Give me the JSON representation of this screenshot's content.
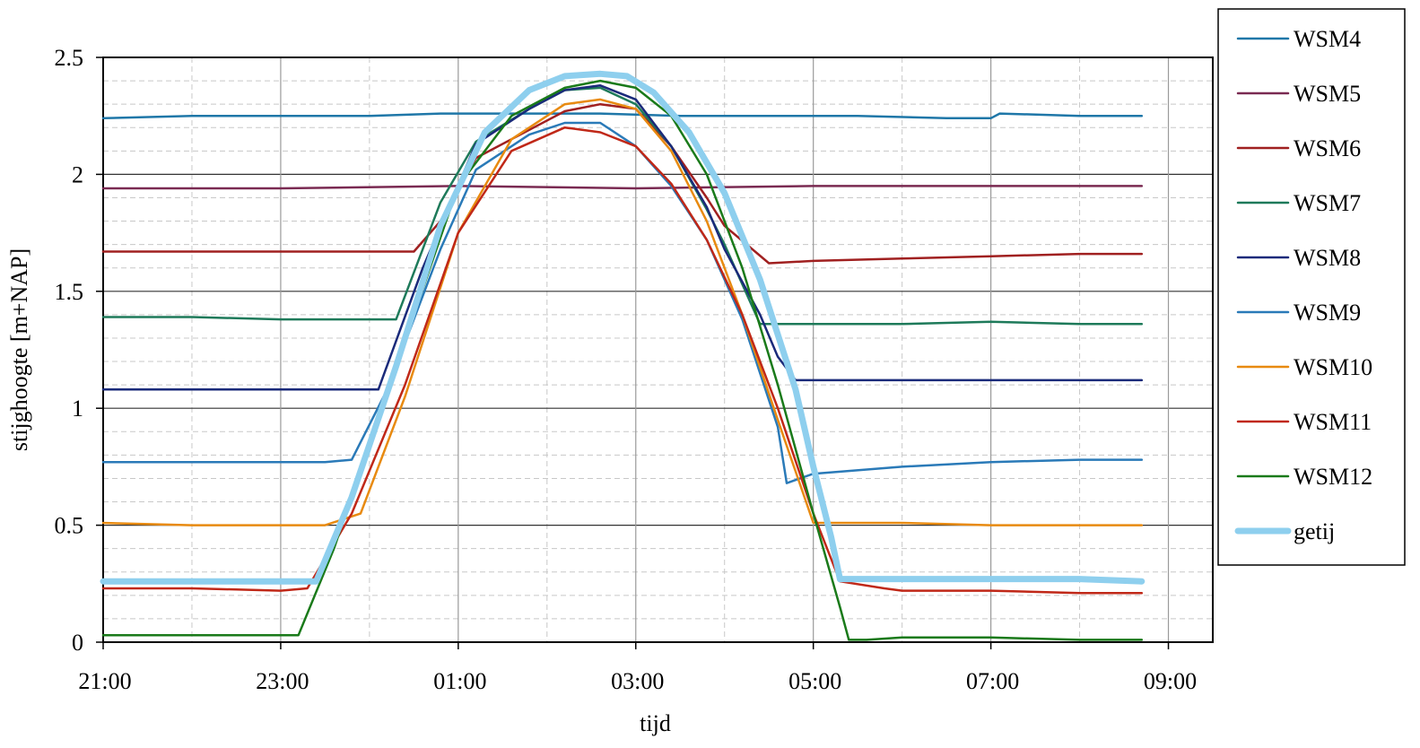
{
  "chart_data": {
    "type": "line",
    "title": "",
    "xlabel": "tijd",
    "ylabel": "stijghoogte [m+NAP]",
    "x_unit": "hours since 21:00",
    "xlim": [
      0,
      12.5
    ],
    "ylim": [
      0,
      2.5
    ],
    "grid": true,
    "legend_position": "right",
    "x_ticks": [
      {
        "value": 0,
        "label": "21:00"
      },
      {
        "value": 2,
        "label": "23:00"
      },
      {
        "value": 4,
        "label": "01:00"
      },
      {
        "value": 6,
        "label": "03:00"
      },
      {
        "value": 8,
        "label": "05:00"
      },
      {
        "value": 10,
        "label": "07:00"
      },
      {
        "value": 12,
        "label": "09:00"
      }
    ],
    "y_ticks": [
      {
        "value": 0,
        "label": "0"
      },
      {
        "value": 0.5,
        "label": "0.5"
      },
      {
        "value": 1,
        "label": "1"
      },
      {
        "value": 1.5,
        "label": "1.5"
      },
      {
        "value": 2,
        "label": "2"
      },
      {
        "value": 2.5,
        "label": "2.5"
      }
    ],
    "series": [
      {
        "name": "WSM4",
        "color": "#1f77a8",
        "width": 2.5,
        "x": [
          0,
          1,
          2,
          3,
          3.8,
          4.4,
          5,
          5.6,
          6.5,
          7.5,
          8.5,
          9.5,
          10.0,
          10.1,
          11,
          11.7
        ],
        "y": [
          2.24,
          2.25,
          2.25,
          2.25,
          2.26,
          2.26,
          2.26,
          2.26,
          2.25,
          2.25,
          2.25,
          2.24,
          2.24,
          2.26,
          2.25,
          2.25
        ]
      },
      {
        "name": "WSM5",
        "color": "#7a2a52",
        "width": 2.5,
        "x": [
          0,
          2,
          4,
          6,
          8,
          10,
          11.7
        ],
        "y": [
          1.94,
          1.94,
          1.95,
          1.94,
          1.95,
          1.95,
          1.95
        ]
      },
      {
        "name": "WSM6",
        "color": "#a02020",
        "width": 2.5,
        "x": [
          0,
          1,
          2,
          3,
          3.5,
          3.8,
          4.2,
          4.8,
          5.2,
          5.6,
          6.0,
          6.4,
          6.8,
          7.0,
          7.5,
          8,
          9,
          10,
          11,
          11.7
        ],
        "y": [
          1.67,
          1.67,
          1.67,
          1.67,
          1.67,
          1.8,
          2.07,
          2.19,
          2.27,
          2.3,
          2.28,
          2.12,
          1.9,
          1.78,
          1.62,
          1.63,
          1.64,
          1.65,
          1.66,
          1.66
        ]
      },
      {
        "name": "WSM7",
        "color": "#1e7a5a",
        "width": 2.5,
        "x": [
          0,
          1,
          2,
          3,
          3.3,
          3.8,
          4.2,
          4.8,
          5.2,
          5.6,
          6.0,
          6.4,
          6.8,
          7.0,
          7.4,
          8,
          9,
          10,
          11,
          11.7
        ],
        "y": [
          1.39,
          1.39,
          1.38,
          1.38,
          1.38,
          1.88,
          2.14,
          2.28,
          2.36,
          2.37,
          2.3,
          2.12,
          1.85,
          1.7,
          1.36,
          1.36,
          1.36,
          1.37,
          1.36,
          1.36
        ]
      },
      {
        "name": "WSM8",
        "color": "#1a2a7a",
        "width": 2.5,
        "x": [
          0,
          1,
          2,
          3,
          3.1,
          3.6,
          4.2,
          4.8,
          5.2,
          5.6,
          6.0,
          6.4,
          6.8,
          7.0,
          7.4,
          7.6,
          7.8,
          8,
          9,
          10,
          11,
          11.7
        ],
        "y": [
          1.08,
          1.08,
          1.08,
          1.08,
          1.08,
          1.6,
          2.13,
          2.28,
          2.36,
          2.38,
          2.32,
          2.12,
          1.86,
          1.68,
          1.4,
          1.22,
          1.12,
          1.12,
          1.12,
          1.12,
          1.12,
          1.12
        ]
      },
      {
        "name": "WSM9",
        "color": "#2a7ab8",
        "width": 2.5,
        "x": [
          0,
          1,
          2,
          2.5,
          2.8,
          3.2,
          3.8,
          4.2,
          4.8,
          5.2,
          5.6,
          6.0,
          6.4,
          6.8,
          7.2,
          7.6,
          7.7,
          8,
          9,
          10,
          11,
          11.7
        ],
        "y": [
          0.77,
          0.77,
          0.77,
          0.77,
          0.78,
          1.08,
          1.68,
          2.02,
          2.17,
          2.22,
          2.22,
          2.12,
          1.95,
          1.72,
          1.38,
          0.92,
          0.68,
          0.72,
          0.75,
          0.77,
          0.78,
          0.78
        ]
      },
      {
        "name": "WSM10",
        "color": "#e88a10",
        "width": 2.5,
        "x": [
          0,
          1,
          2,
          2.5,
          2.9,
          3.4,
          4.0,
          4.6,
          5.2,
          5.6,
          6.0,
          6.4,
          6.8,
          7.2,
          7.6,
          8,
          9,
          10,
          11,
          11.7
        ],
        "y": [
          0.51,
          0.5,
          0.5,
          0.5,
          0.55,
          1.05,
          1.75,
          2.15,
          2.3,
          2.32,
          2.28,
          2.1,
          1.8,
          1.4,
          0.95,
          0.51,
          0.51,
          0.5,
          0.5,
          0.5
        ]
      },
      {
        "name": "WSM11",
        "color": "#c02818",
        "width": 2.5,
        "x": [
          0,
          1,
          2,
          2.3,
          2.8,
          3.4,
          4.0,
          4.6,
          5.2,
          5.6,
          6.0,
          6.4,
          6.8,
          7.2,
          7.6,
          8.0,
          8.3,
          8.8,
          9,
          10,
          11,
          11.7
        ],
        "y": [
          0.23,
          0.23,
          0.22,
          0.23,
          0.55,
          1.1,
          1.75,
          2.1,
          2.2,
          2.18,
          2.12,
          1.96,
          1.72,
          1.4,
          1.0,
          0.55,
          0.26,
          0.23,
          0.22,
          0.22,
          0.21,
          0.21
        ]
      },
      {
        "name": "WSM12",
        "color": "#1a7a1a",
        "width": 2.5,
        "x": [
          0,
          1,
          2,
          2.2,
          2.6,
          3.0,
          3.5,
          4.0,
          4.6,
          5.2,
          5.6,
          6.0,
          6.4,
          6.8,
          7.2,
          7.6,
          8.0,
          8.3,
          8.4,
          8.6,
          9,
          10,
          11,
          11.7
        ],
        "y": [
          0.03,
          0.03,
          0.03,
          0.03,
          0.4,
          0.85,
          1.4,
          1.95,
          2.25,
          2.37,
          2.4,
          2.37,
          2.25,
          2.0,
          1.6,
          1.1,
          0.55,
          0.15,
          0.01,
          0.01,
          0.02,
          0.02,
          0.01,
          0.01
        ]
      },
      {
        "name": "getij",
        "color": "#8ecfee",
        "width": 7,
        "x": [
          0,
          1,
          2,
          2.4,
          2.8,
          3.3,
          3.8,
          4.3,
          4.8,
          5.2,
          5.6,
          5.9,
          6.2,
          6.6,
          7.0,
          7.4,
          7.8,
          8.0,
          8.2,
          8.3,
          9,
          10,
          11,
          11.7
        ],
        "y": [
          0.26,
          0.26,
          0.26,
          0.26,
          0.62,
          1.18,
          1.78,
          2.18,
          2.36,
          2.42,
          2.43,
          2.42,
          2.35,
          2.18,
          1.92,
          1.55,
          1.08,
          0.75,
          0.45,
          0.27,
          0.27,
          0.27,
          0.27,
          0.26
        ]
      }
    ]
  }
}
